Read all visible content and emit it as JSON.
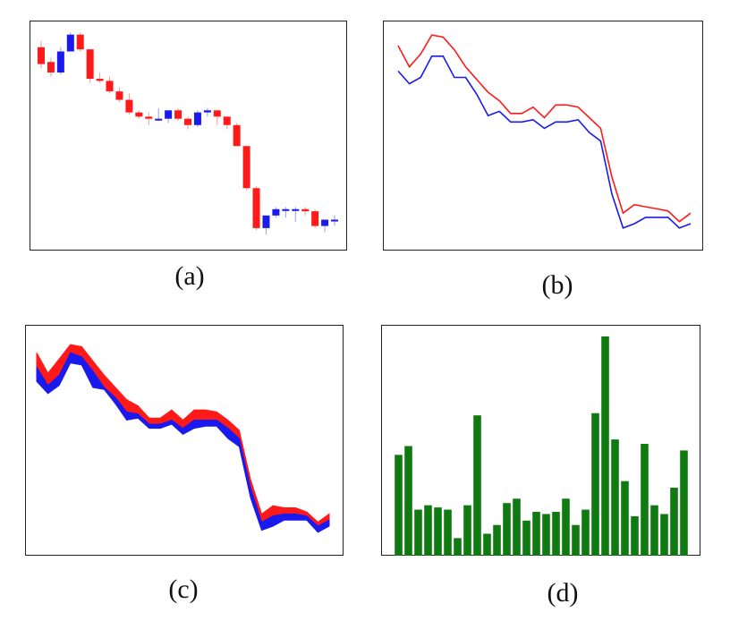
{
  "captions": {
    "a": "(a)",
    "b": "(b)",
    "c": "(c)",
    "d": "(d)"
  },
  "colors": {
    "up": "#ff1a1a",
    "down": "#1a1aee",
    "bar": "#0f7a0f"
  },
  "chart_data": [
    {
      "type": "candlestick",
      "panel": "a",
      "ylim": [
        0,
        100
      ],
      "ohlc": [
        [
          92,
          95,
          82,
          84
        ],
        [
          85,
          87,
          78,
          80
        ],
        [
          80,
          92,
          79,
          90
        ],
        [
          90,
          99,
          90,
          98
        ],
        [
          98,
          99,
          90,
          91
        ],
        [
          91,
          91,
          75,
          77
        ],
        [
          77,
          80,
          75,
          76
        ],
        [
          76,
          78,
          70,
          71
        ],
        [
          71,
          73,
          66,
          67
        ],
        [
          67,
          70,
          60,
          61
        ],
        [
          61,
          62,
          58,
          59
        ],
        [
          59,
          61,
          55,
          58
        ],
        [
          58,
          63,
          57,
          58
        ],
        [
          58,
          62,
          56,
          62
        ],
        [
          62,
          63,
          57,
          58
        ],
        [
          58,
          59,
          53,
          55
        ],
        [
          55,
          62,
          54,
          61
        ],
        [
          61,
          63,
          59,
          62
        ],
        [
          62,
          62,
          55,
          59
        ],
        [
          59,
          59,
          53,
          55
        ],
        [
          55,
          56,
          45,
          45
        ],
        [
          45,
          45,
          24,
          25
        ],
        [
          25,
          26,
          5,
          6
        ],
        [
          6,
          12,
          3,
          12
        ],
        [
          12,
          16,
          11,
          15
        ],
        [
          15,
          16,
          11,
          15
        ],
        [
          15,
          16,
          9,
          15
        ],
        [
          15,
          16,
          12,
          14
        ],
        [
          14,
          15,
          6,
          7
        ],
        [
          7,
          10,
          4,
          10
        ],
        [
          10,
          12,
          7,
          10
        ]
      ]
    },
    {
      "type": "line",
      "panel": "b",
      "ylim": [
        0,
        100
      ],
      "series": [
        {
          "values": [
            92,
            82,
            88,
            97,
            96,
            90,
            82,
            76,
            70,
            66,
            60,
            60,
            63,
            58,
            64,
            64,
            63,
            58,
            53,
            30,
            13,
            17,
            16,
            15,
            14,
            9,
            13
          ]
        },
        {
          "values": [
            80,
            74,
            77,
            87,
            87,
            77,
            77,
            69,
            59,
            61,
            56,
            56,
            57,
            53,
            56,
            56,
            57,
            51,
            47,
            22,
            6,
            8,
            11,
            11,
            11,
            6,
            8
          ]
        }
      ]
    },
    {
      "type": "area",
      "panel": "c",
      "ylim": [
        0,
        100
      ],
      "series": [
        {
          "values": [
            92,
            82,
            89,
            96,
            95,
            88,
            81,
            75,
            69,
            66,
            60,
            60,
            64,
            59,
            64,
            64,
            63,
            59,
            54,
            30,
            13,
            17,
            16,
            16,
            14,
            9,
            13
          ]
        },
        {
          "values": [
            85,
            76,
            81,
            92,
            90,
            83,
            75,
            70,
            63,
            62,
            57,
            57,
            59,
            55,
            59,
            59,
            59,
            55,
            50,
            26,
            9,
            12,
            13,
            13,
            12,
            7,
            10
          ]
        },
        {
          "values": [
            78,
            72,
            76,
            87,
            86,
            75,
            74,
            67,
            59,
            60,
            55,
            55,
            57,
            52,
            55,
            56,
            56,
            50,
            46,
            21,
            5,
            7,
            10,
            10,
            10,
            4,
            7
          ]
        }
      ]
    },
    {
      "type": "bar",
      "panel": "d",
      "ylim": [
        0,
        100
      ],
      "values": [
        46,
        50,
        21,
        23,
        22,
        21,
        8,
        23,
        64,
        10,
        14,
        24,
        26,
        16,
        20,
        19,
        20,
        26,
        14,
        21,
        65,
        100,
        53,
        34,
        18,
        51,
        23,
        19,
        31,
        48
      ]
    }
  ]
}
